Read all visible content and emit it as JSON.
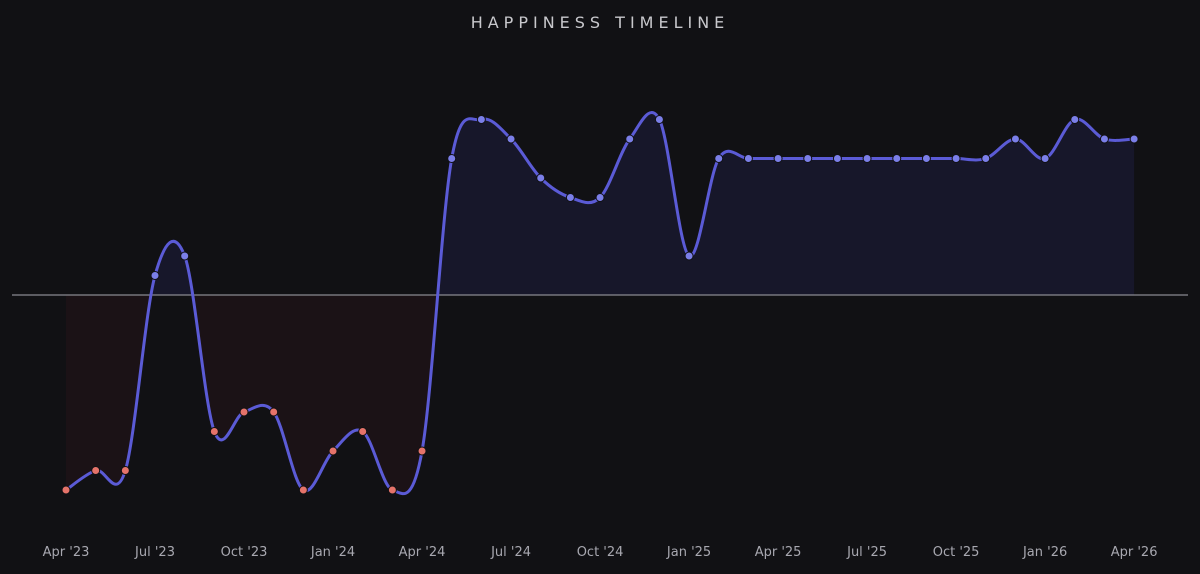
{
  "chart_data": {
    "type": "line",
    "title": "HAPPINESS TIMELINE",
    "xlabel": "",
    "ylabel": "",
    "x": [
      "2023-04",
      "2023-05",
      "2023-06",
      "2023-07",
      "2023-08",
      "2023-09",
      "2023-10",
      "2023-11",
      "2023-12",
      "2024-01",
      "2024-02",
      "2024-03",
      "2024-04",
      "2024-05",
      "2024-06",
      "2024-07",
      "2024-08",
      "2024-09",
      "2024-10",
      "2024-11",
      "2024-12",
      "2025-01",
      "2025-02",
      "2025-03",
      "2025-04",
      "2025-05",
      "2025-06",
      "2025-07",
      "2025-08",
      "2025-09",
      "2025-10",
      "2025-11",
      "2025-12",
      "2026-01",
      "2026-02",
      "2026-03",
      "2026-04"
    ],
    "y": [
      -5,
      -4.5,
      -4.5,
      0.5,
      1,
      -3.5,
      -3,
      -3,
      -5,
      -4,
      -3.5,
      -5,
      -4,
      3.5,
      4.5,
      4,
      3,
      2.5,
      2.5,
      4,
      4.5,
      1,
      3.5,
      3.5,
      3.5,
      3.5,
      3.5,
      3.5,
      3.5,
      3.5,
      3.5,
      3.5,
      4,
      3.5,
      4.5,
      4,
      4
    ],
    "baseline": 0,
    "ylim": [
      -6,
      6
    ],
    "xtick_labels": [
      "Apr '23",
      "Jul '23",
      "Oct '23",
      "Jan '24",
      "Apr '24",
      "Jul '24",
      "Oct '24",
      "Jan '25",
      "Apr '25",
      "Jul '25",
      "Oct '25",
      "Jan '26",
      "Apr '26"
    ],
    "grid": false,
    "legend": "none",
    "colors": {
      "background": "#111114",
      "line": "#5b5bd6",
      "positive_point": "#7b7fe8",
      "negative_point": "#e5736a",
      "positive_fill": "#17172a",
      "negative_fill": "#1b1216",
      "baseline": "#8a8a90",
      "title": "#c8c8cc",
      "tick_text": "#a8a8b0"
    }
  }
}
